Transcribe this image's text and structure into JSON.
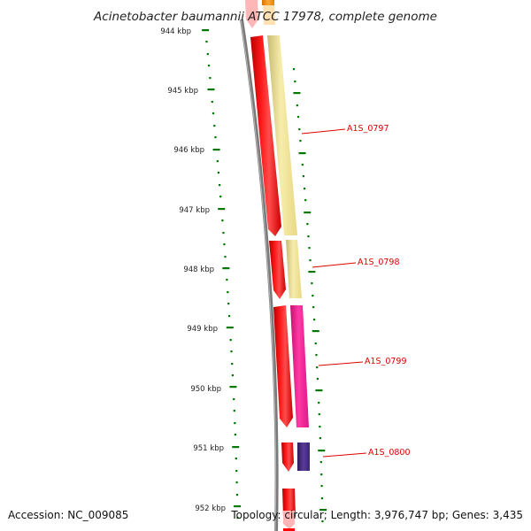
{
  "title": "Acinetobacter baumannii ATCC 17978, complete genome",
  "accession": "Accession: NC_009085",
  "summary": "Topology: circular; Length: 3,976,747 bp; Genes: 3,435",
  "ticks": [
    {
      "label": "944 kbp"
    },
    {
      "label": "945 kbp"
    },
    {
      "label": "946 kbp"
    },
    {
      "label": "947 kbp"
    },
    {
      "label": "948 kbp"
    },
    {
      "label": "949 kbp"
    },
    {
      "label": "950 kbp"
    },
    {
      "label": "951 kbp"
    },
    {
      "label": "952 kbp"
    }
  ],
  "genes": [
    {
      "label": "A1S_0797"
    },
    {
      "label": "A1S_0798"
    },
    {
      "label": "A1S_0799"
    },
    {
      "label": "A1S_0800"
    }
  ],
  "colors": {
    "cds": "#ff0000",
    "backbone": "#808080",
    "tick": "#007700",
    "label": "#e00000",
    "cog_yellow": "#f3e69a",
    "cog_pink": "#ff1493",
    "cog_purple": "#4b2e83",
    "cog_orange": "#ff8c00"
  }
}
